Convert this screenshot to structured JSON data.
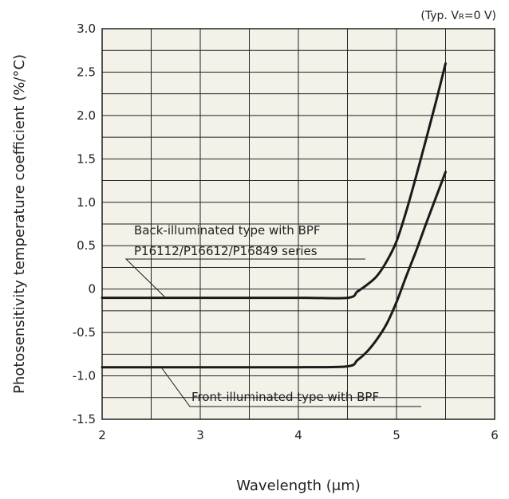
{
  "chart_data": {
    "type": "line",
    "note": "(Typ. V",
    "note_sub": "R",
    "note_end": "=0 V)",
    "xlabel": "Wavelength (μm)",
    "ylabel": "Photosensitivity temperature coefficient (%/°C)",
    "xlim": [
      2,
      6
    ],
    "ylim": [
      -1.5,
      3.0
    ],
    "x_ticks": [
      "2",
      "3",
      "4",
      "5",
      "6"
    ],
    "y_ticks": [
      "3.0",
      "2.5",
      "2.0",
      "1.5",
      "1.0",
      "0.5",
      "0",
      "-0.5",
      "-1.0",
      "-1.5"
    ],
    "grid": true,
    "plot_background": "#f3f1e8",
    "line_color": "#1a1a1a",
    "series": [
      {
        "name": "Back-illuminated type with BPF P16112/P16612/P16849 series",
        "label_lines": [
          "Back-illuminated type with BPF",
          "P16112/P16612/P16849 series"
        ],
        "points": [
          [
            2.0,
            -0.1
          ],
          [
            3.0,
            -0.1
          ],
          [
            4.0,
            -0.1
          ],
          [
            4.5,
            -0.1
          ],
          [
            4.6,
            -0.03
          ],
          [
            4.7,
            0.05
          ],
          [
            4.8,
            0.15
          ],
          [
            4.9,
            0.32
          ],
          [
            5.0,
            0.55
          ],
          [
            5.1,
            0.9
          ],
          [
            5.2,
            1.3
          ],
          [
            5.3,
            1.72
          ],
          [
            5.4,
            2.15
          ],
          [
            5.5,
            2.6
          ]
        ]
      },
      {
        "name": "Front-illuminated type with BPF",
        "label_lines": [
          "Front-illuminated type with BPF"
        ],
        "points": [
          [
            2.0,
            -0.9
          ],
          [
            3.0,
            -0.9
          ],
          [
            4.0,
            -0.9
          ],
          [
            4.5,
            -0.89
          ],
          [
            4.6,
            -0.82
          ],
          [
            4.7,
            -0.72
          ],
          [
            4.8,
            -0.58
          ],
          [
            4.9,
            -0.4
          ],
          [
            5.0,
            -0.15
          ],
          [
            5.1,
            0.15
          ],
          [
            5.2,
            0.44
          ],
          [
            5.3,
            0.75
          ],
          [
            5.4,
            1.05
          ],
          [
            5.5,
            1.35
          ]
        ]
      }
    ]
  }
}
